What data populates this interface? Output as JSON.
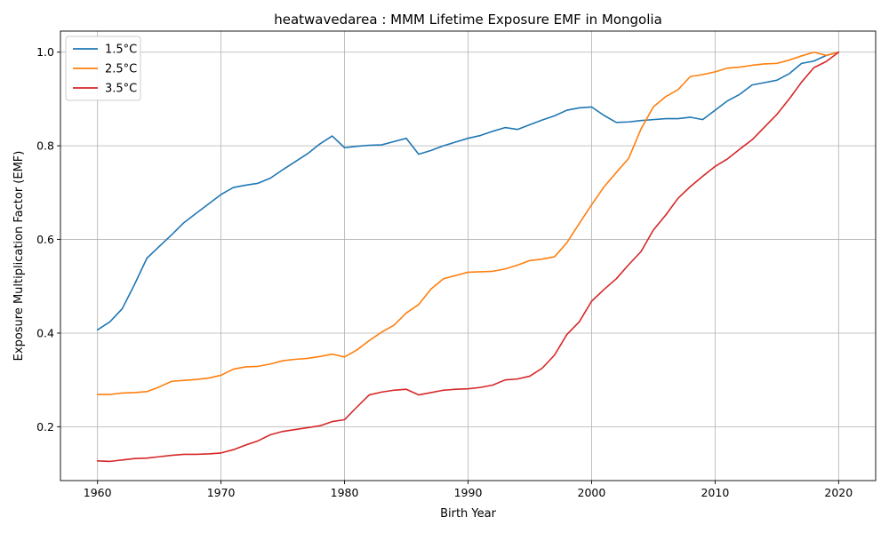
{
  "chart_data": {
    "type": "line",
    "title": "heatwavedarea : MMM Lifetime Exposure EMF in Mongolia",
    "xlabel": "Birth Year",
    "ylabel": "Exposure Multiplication Factor (EMF)",
    "xlim": [
      1957,
      2023
    ],
    "ylim": [
      0.085,
      1.045
    ],
    "xticks": [
      1960,
      1970,
      1980,
      1990,
      2000,
      2010,
      2020
    ],
    "yticks": [
      0.2,
      0.4,
      0.6,
      0.8,
      1.0
    ],
    "xtick_labels": [
      "1960",
      "1970",
      "1980",
      "1990",
      "2000",
      "2010",
      "2020"
    ],
    "ytick_labels": [
      "0.2",
      "0.4",
      "0.6",
      "0.8",
      "1.0"
    ],
    "grid": true,
    "legend_position": "top-left",
    "x": [
      1960,
      1961,
      1962,
      1963,
      1964,
      1965,
      1966,
      1967,
      1968,
      1969,
      1970,
      1971,
      1972,
      1973,
      1974,
      1975,
      1976,
      1977,
      1978,
      1979,
      1980,
      1981,
      1982,
      1983,
      1984,
      1985,
      1986,
      1987,
      1988,
      1989,
      1990,
      1991,
      1992,
      1993,
      1994,
      1995,
      1996,
      1997,
      1998,
      1999,
      2000,
      2001,
      2002,
      2003,
      2004,
      2005,
      2006,
      2007,
      2008,
      2009,
      2010,
      2011,
      2012,
      2013,
      2014,
      2015,
      2016,
      2017,
      2018,
      2019,
      2020
    ],
    "series": [
      {
        "name": "1.5°C",
        "color": "#1f77b4",
        "values": [
          0.407,
          0.424,
          0.452,
          0.504,
          0.56,
          0.585,
          0.61,
          0.636,
          0.656,
          0.676,
          0.696,
          0.711,
          0.716,
          0.72,
          0.731,
          0.749,
          0.766,
          0.783,
          0.804,
          0.821,
          0.796,
          0.799,
          0.801,
          0.802,
          0.809,
          0.816,
          0.782,
          0.79,
          0.8,
          0.808,
          0.816,
          0.822,
          0.831,
          0.839,
          0.835,
          0.845,
          0.855,
          0.864,
          0.876,
          0.881,
          0.883,
          0.865,
          0.85,
          0.851,
          0.854,
          0.856,
          0.858,
          0.858,
          0.861,
          0.856,
          0.876,
          0.896,
          0.91,
          0.93,
          0.935,
          0.94,
          0.954,
          0.976,
          0.981,
          0.993,
          1.0
        ]
      },
      {
        "name": "2.5°C",
        "color": "#ff7f0e",
        "values": [
          0.269,
          0.269,
          0.272,
          0.273,
          0.275,
          0.285,
          0.297,
          0.299,
          0.301,
          0.304,
          0.31,
          0.323,
          0.328,
          0.329,
          0.334,
          0.341,
          0.344,
          0.346,
          0.35,
          0.355,
          0.349,
          0.364,
          0.384,
          0.402,
          0.417,
          0.443,
          0.461,
          0.494,
          0.516,
          0.523,
          0.53,
          0.531,
          0.532,
          0.537,
          0.545,
          0.555,
          0.558,
          0.563,
          0.593,
          0.634,
          0.674,
          0.712,
          0.743,
          0.773,
          0.836,
          0.883,
          0.905,
          0.92,
          0.948,
          0.952,
          0.958,
          0.966,
          0.968,
          0.972,
          0.975,
          0.976,
          0.983,
          0.992,
          1.0,
          0.993,
          1.0
        ]
      },
      {
        "name": "3.5°C",
        "color": "#d62728",
        "values": [
          0.127,
          0.126,
          0.129,
          0.132,
          0.133,
          0.136,
          0.139,
          0.141,
          0.141,
          0.142,
          0.144,
          0.151,
          0.161,
          0.17,
          0.183,
          0.19,
          0.194,
          0.198,
          0.202,
          0.211,
          0.215,
          0.242,
          0.268,
          0.274,
          0.278,
          0.28,
          0.268,
          0.273,
          0.278,
          0.28,
          0.281,
          0.284,
          0.289,
          0.3,
          0.302,
          0.308,
          0.325,
          0.353,
          0.397,
          0.424,
          0.468,
          0.493,
          0.516,
          0.546,
          0.574,
          0.62,
          0.652,
          0.688,
          0.713,
          0.735,
          0.756,
          0.772,
          0.793,
          0.813,
          0.84,
          0.867,
          0.9,
          0.936,
          0.967,
          0.98,
          1.0
        ]
      }
    ]
  }
}
